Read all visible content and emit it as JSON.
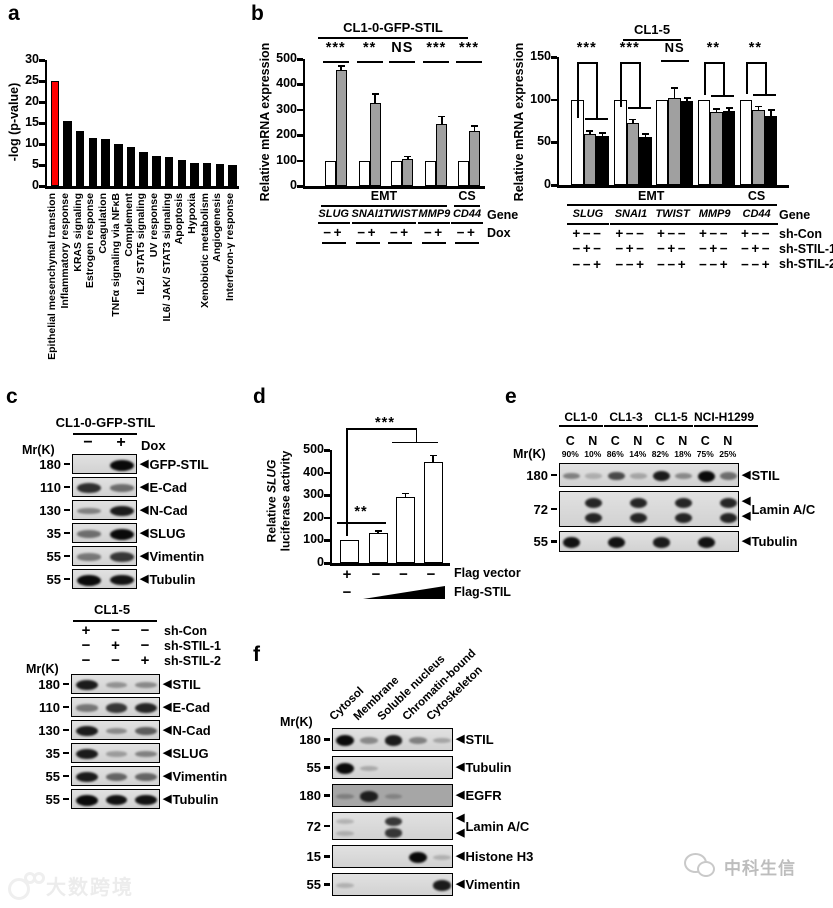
{
  "letters": {
    "a": "a",
    "b": "b",
    "c": "c",
    "d": "d",
    "e": "e",
    "f": "f"
  },
  "chart_data": [
    {
      "id": "panel-a",
      "type": "bar",
      "ylabel": "-log (p-value)",
      "ylim": [
        0,
        30
      ],
      "yticks": [
        0,
        5,
        10,
        15,
        20,
        25,
        30
      ],
      "categories": [
        "Epithelial mesenchymal transtion",
        "Inflammatory response",
        "KRAS signaling",
        "Estrogen response",
        "Coagulation",
        "TNFα signaling via NFκB",
        "Complement",
        "IL2/ STAT5 signaling",
        "UV response",
        "IL6/ JAK/ STAT3 signaling",
        "Apoptosis",
        "Hypoxia",
        "Xenobiotic metabolism",
        "Angiogenesis",
        "Interferon-γ response"
      ],
      "values": [
        25,
        15.5,
        13.2,
        11.5,
        11.3,
        10.1,
        9.4,
        8.0,
        7.2,
        6.9,
        6.2,
        5.5,
        5.4,
        5.2,
        5.0
      ],
      "bar_color": "#000000",
      "highlight_index": 0,
      "highlight_color": "#ff0000"
    },
    {
      "id": "panel-b-left",
      "type": "bar",
      "title": "CL1-0-GFP-STIL",
      "ylabel": "Relative mRNA expression",
      "ylim": [
        0,
        500
      ],
      "yticks": [
        0,
        100,
        200,
        300,
        400,
        500
      ],
      "series": [
        {
          "name": "Dox −",
          "color": "#ffffff"
        },
        {
          "name": "Dox +",
          "color": "#a0a0a0"
        }
      ],
      "groups": [
        {
          "gene": "SLUG",
          "sig": "***",
          "values": [
            100,
            455
          ],
          "errors": [
            0,
            14
          ]
        },
        {
          "gene": "SNAI1",
          "sig": "**",
          "values": [
            100,
            325
          ],
          "errors": [
            0,
            35
          ]
        },
        {
          "gene": "TWIST",
          "sig": "NS",
          "values": [
            100,
            105
          ],
          "errors": [
            0,
            8
          ]
        },
        {
          "gene": "MMP9",
          "sig": "***",
          "values": [
            100,
            245
          ],
          "errors": [
            0,
            25
          ]
        },
        {
          "gene": "CD44",
          "sig": "***",
          "values": [
            100,
            215
          ],
          "errors": [
            0,
            17
          ]
        }
      ],
      "sections": [
        {
          "label": "EMT",
          "from": 0,
          "to": 3
        },
        {
          "label": "CS",
          "from": 4,
          "to": 4
        }
      ],
      "dox_pattern": "−+",
      "row_labels": {
        "gene": "Gene",
        "dox": "Dox"
      }
    },
    {
      "id": "panel-b-right",
      "type": "bar",
      "title": "CL1-5",
      "ylabel": "Relative mRNA expression",
      "ylim": [
        0,
        150
      ],
      "yticks": [
        0,
        50,
        100,
        150
      ],
      "series": [
        {
          "name": "sh-Con",
          "color": "#ffffff"
        },
        {
          "name": "sh-STIL-1",
          "color": "#a0a0a0"
        },
        {
          "name": "sh-STIL-2",
          "color": "#000000"
        }
      ],
      "groups": [
        {
          "gene": "SLUG",
          "sig": "***",
          "values": [
            100,
            60,
            58
          ],
          "errors": [
            0,
            2,
            2
          ]
        },
        {
          "gene": "SNAI1",
          "sig": "***",
          "values": [
            100,
            73,
            56
          ],
          "errors": [
            0,
            3,
            3
          ]
        },
        {
          "gene": "TWIST",
          "sig": "NS",
          "values": [
            100,
            102,
            99
          ],
          "errors": [
            0,
            11,
            2
          ]
        },
        {
          "gene": "MMP9",
          "sig": "**",
          "values": [
            100,
            85,
            87
          ],
          "errors": [
            0,
            3,
            2
          ]
        },
        {
          "gene": "CD44",
          "sig": "**",
          "values": [
            100,
            88,
            81
          ],
          "errors": [
            0,
            3,
            6
          ]
        }
      ],
      "sections": [
        {
          "label": "EMT",
          "from": 0,
          "to": 3
        },
        {
          "label": "CS",
          "from": 4,
          "to": 4
        }
      ],
      "condition_patterns": [
        "+−−",
        "−+−",
        "−−+"
      ],
      "row_labels": {
        "gene": "Gene",
        "rows": [
          "sh-Con",
          "sh-STIL-1",
          "sh-STIL-2"
        ]
      }
    },
    {
      "id": "panel-d",
      "type": "bar",
      "ylabel_pre": "Relative ",
      "ylabel_italic": "SLUG",
      "ylabel_line2": "luciferase activity",
      "ylim": [
        0,
        500
      ],
      "yticks": [
        0,
        100,
        200,
        300,
        400,
        500
      ],
      "values": [
        100,
        135,
        290,
        445
      ],
      "errors": [
        0,
        3,
        14,
        28
      ],
      "bar_color": "#ffffff",
      "sig_small": "**",
      "sig_large": "***",
      "bottom_rows": [
        {
          "pattern": [
            "+",
            "−",
            "−",
            "−"
          ],
          "label": "Flag vector"
        },
        {
          "pattern": [
            "−"
          ],
          "wedge": true,
          "label": "Flag-STIL"
        }
      ]
    }
  ],
  "panel_c": {
    "top": {
      "title": "CL1-0-GFP-STIL",
      "mr_label": "Mr(K)",
      "lane_symbols": [
        "−",
        "+"
      ],
      "lane_label": "Dox",
      "rows": [
        {
          "mr": "180",
          "protein": "GFP-STIL",
          "bands": [
            0,
            1
          ]
        },
        {
          "mr": "110",
          "protein": "E-Cad",
          "bands": [
            0.8,
            0.45
          ]
        },
        {
          "mr": "130",
          "protein": "N-Cad",
          "bands": [
            0.35,
            0.9
          ]
        },
        {
          "mr": "35",
          "protein": "SLUG",
          "bands": [
            0.45,
            1
          ]
        },
        {
          "mr": "55",
          "protein": "Vimentin",
          "bands": [
            0.4,
            0.75
          ]
        },
        {
          "mr": "55",
          "protein": "Tubulin",
          "bands": [
            1,
            0.95
          ]
        }
      ]
    },
    "bottom": {
      "title": "CL1-5",
      "mr_label": "Mr(K)",
      "condition_rows": [
        {
          "pattern": [
            "+",
            "−",
            "−"
          ],
          "label": "sh-Con"
        },
        {
          "pattern": [
            "−",
            "+",
            "−"
          ],
          "label": "sh-STIL-1"
        },
        {
          "pattern": [
            "−",
            "−",
            "+"
          ],
          "label": "sh-STIL-2"
        }
      ],
      "rows": [
        {
          "mr": "180",
          "protein": "STIL",
          "bands": [
            0.9,
            0.25,
            0.3
          ]
        },
        {
          "mr": "110",
          "protein": "E-Cad",
          "bands": [
            0.4,
            0.75,
            0.85
          ]
        },
        {
          "mr": "130",
          "protein": "N-Cad",
          "bands": [
            0.9,
            0.3,
            0.55
          ]
        },
        {
          "mr": "35",
          "protein": "SLUG",
          "bands": [
            0.9,
            0.2,
            0.35
          ]
        },
        {
          "mr": "55",
          "protein": "Vimentin",
          "bands": [
            0.9,
            0.5,
            0.5
          ]
        },
        {
          "mr": "55",
          "protein": "Tubulin",
          "bands": [
            1,
            0.95,
            0.95
          ]
        }
      ]
    }
  },
  "panel_e": {
    "mr_label": "Mr(K)",
    "cell_lines": [
      "CL1-0",
      "CL1-3",
      "CL1-5",
      "NCI-H1299"
    ],
    "lane_headers": [
      "C",
      "N",
      "C",
      "N",
      "C",
      "N",
      "C",
      "N"
    ],
    "percentages": [
      "90%",
      "10%",
      "86%",
      "14%",
      "82%",
      "18%",
      "75%",
      "25%"
    ],
    "rows": [
      {
        "mr": "180",
        "protein": "STIL",
        "bands": [
          0.35,
          0.1,
          0.65,
          0.15,
          0.9,
          0.3,
          1,
          0.45
        ]
      },
      {
        "mr": "72",
        "protein": "Lamin A/C",
        "double": true,
        "bands": [
          0,
          0.85,
          0,
          0.85,
          0,
          0.85,
          0,
          0.85
        ]
      },
      {
        "mr": "55",
        "protein": "Tubulin",
        "bands": [
          0.95,
          0,
          0.95,
          0,
          0.9,
          0,
          0.95,
          0
        ]
      }
    ]
  },
  "panel_f": {
    "mr_label": "Mr(K)",
    "fractions": [
      "Cytosol",
      "Membrane",
      "Soluble nucleus",
      "Chromatin-bound",
      "Cytoskeleton"
    ],
    "rows": [
      {
        "mr": "180",
        "protein": "STIL",
        "bands": [
          1,
          0.3,
          0.9,
          0.35,
          0.15
        ]
      },
      {
        "mr": "55",
        "protein": "Tubulin",
        "bands": [
          1,
          0.12,
          0,
          0,
          0
        ]
      },
      {
        "mr": "180",
        "protein": "EGFR",
        "bands": [
          0.15,
          0.85,
          0.12,
          0,
          0
        ],
        "bg": "#a6a6a6"
      },
      {
        "mr": "72",
        "protein": "Lamin A/C",
        "double": true,
        "bands": [
          0.08,
          0,
          0.75,
          0,
          0
        ]
      },
      {
        "mr": "15",
        "protein": "Histone H3",
        "bands": [
          0,
          0,
          0,
          1,
          0.08
        ]
      },
      {
        "mr": "55",
        "protein": "Vimentin",
        "bands": [
          0.08,
          0,
          0,
          0,
          0.9
        ]
      }
    ]
  },
  "watermarks": {
    "bottom_left": "大数跨境",
    "bottom_right": "中科生信"
  }
}
